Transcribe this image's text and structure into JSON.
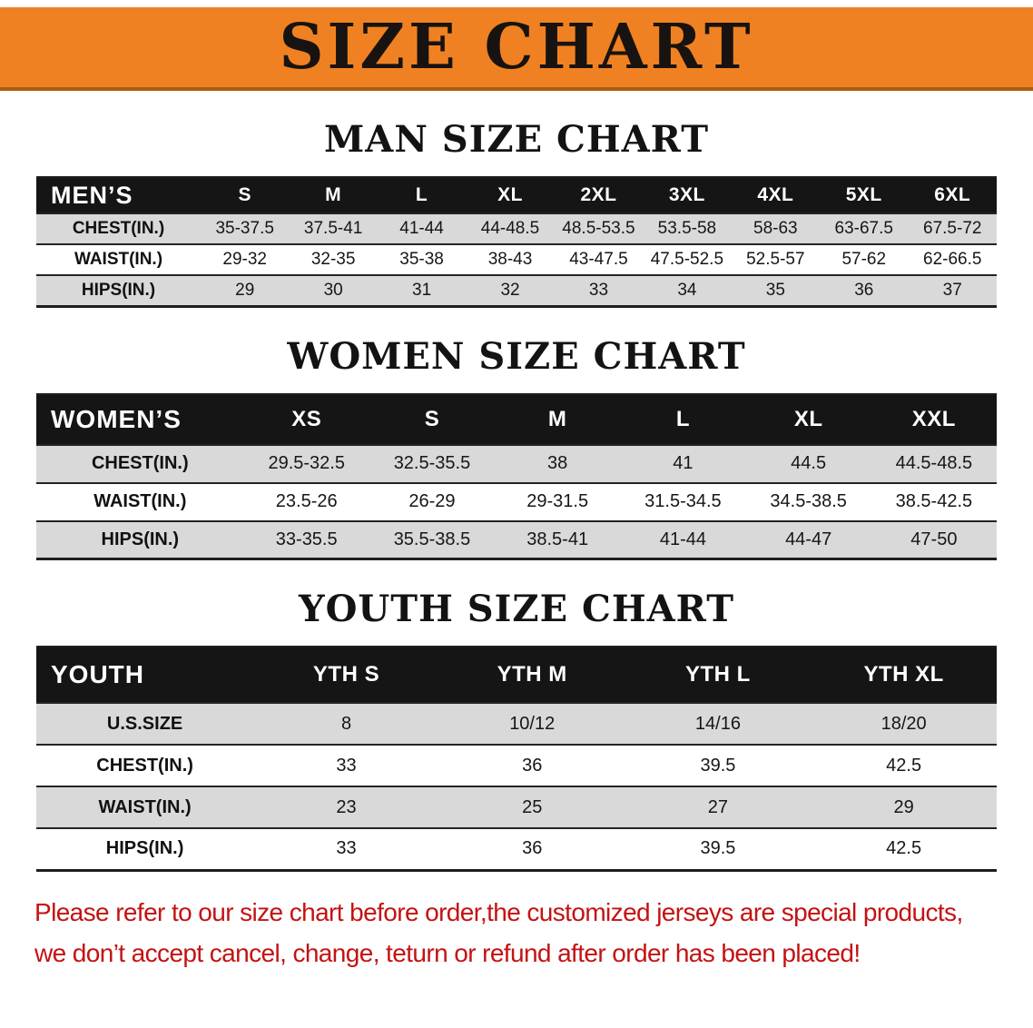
{
  "colors": {
    "banner_bg": "#f08122",
    "header_bg": "#151515",
    "row_stripe": "#d9d9d9",
    "warning_red": "#c41212"
  },
  "banner": {
    "title": "SIZE CHART"
  },
  "sections": [
    {
      "id": "men",
      "heading": "MAN SIZE CHART",
      "table": {
        "corner_label": "MEN’S",
        "columns": [
          "S",
          "M",
          "L",
          "XL",
          "2XL",
          "3XL",
          "4XL",
          "5XL",
          "6XL"
        ],
        "rows": [
          {
            "label": "CHEST(IN.)",
            "values": [
              "35-37.5",
              "37.5-41",
              "41-44",
              "44-48.5",
              "48.5-53.5",
              "53.5-58",
              "58-63",
              "63-67.5",
              "67.5-72"
            ]
          },
          {
            "label": "WAIST(IN.)",
            "values": [
              "29-32",
              "32-35",
              "35-38",
              "38-43",
              "43-47.5",
              "47.5-52.5",
              "52.5-57",
              "57-62",
              "62-66.5"
            ]
          },
          {
            "label": "HIPS(IN.)",
            "values": [
              "29",
              "30",
              "31",
              "32",
              "33",
              "34",
              "35",
              "36",
              "37"
            ]
          }
        ]
      }
    },
    {
      "id": "women",
      "heading": "WOMEN SIZE CHART",
      "table": {
        "corner_label": "WOMEN’S",
        "columns": [
          "XS",
          "S",
          "M",
          "L",
          "XL",
          "XXL"
        ],
        "rows": [
          {
            "label": "CHEST(IN.)",
            "values": [
              "29.5-32.5",
              "32.5-35.5",
              "38",
              "41",
              "44.5",
              "44.5-48.5"
            ]
          },
          {
            "label": "WAIST(IN.)",
            "values": [
              "23.5-26",
              "26-29",
              "29-31.5",
              "31.5-34.5",
              "34.5-38.5",
              "38.5-42.5"
            ]
          },
          {
            "label": "HIPS(IN.)",
            "values": [
              "33-35.5",
              "35.5-38.5",
              "38.5-41",
              "41-44",
              "44-47",
              "47-50"
            ]
          }
        ]
      }
    },
    {
      "id": "youth",
      "heading": "YOUTH SIZE CHART",
      "table": {
        "corner_label": "YOUTH",
        "columns": [
          "YTH S",
          "YTH M",
          "YTH L",
          "YTH XL"
        ],
        "rows": [
          {
            "label": "U.S.SIZE",
            "values": [
              "8",
              "10/12",
              "14/16",
              "18/20"
            ]
          },
          {
            "label": "CHEST(IN.)",
            "values": [
              "33",
              "36",
              "39.5",
              "42.5"
            ]
          },
          {
            "label": "WAIST(IN.)",
            "values": [
              "23",
              "25",
              "27",
              "29"
            ]
          },
          {
            "label": "HIPS(IN.)",
            "values": [
              "33",
              "36",
              "39.5",
              "42.5"
            ]
          }
        ]
      }
    }
  ],
  "footer": {
    "lines": [
      "Please refer to our size chart before order,the customized jerseys are special products,",
      "we don’t accept cancel, change, teturn or refund after order has been placed!"
    ]
  }
}
